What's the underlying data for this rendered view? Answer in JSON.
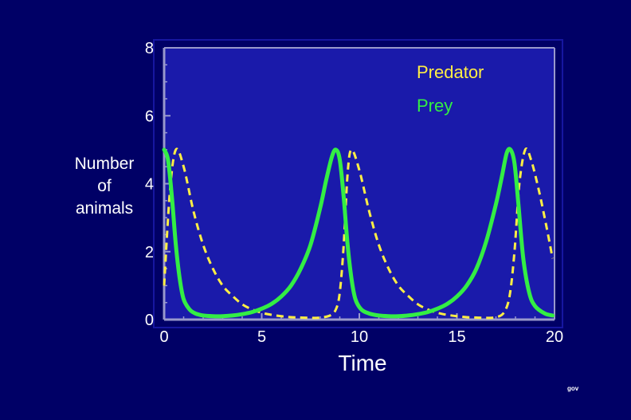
{
  "chart_data": {
    "type": "line",
    "title": "",
    "xlabel": "Time",
    "ylabel_lines": [
      "Number",
      "of",
      "animals"
    ],
    "xlim": [
      0,
      20
    ],
    "ylim": [
      0,
      8
    ],
    "xticks": [
      0,
      5,
      10,
      15,
      20
    ],
    "yticks": [
      0,
      2,
      4,
      6,
      8
    ],
    "grid": false,
    "legend_position": "top-right",
    "colors": {
      "background": "#000066",
      "plot_area": "#1a1aaa",
      "axis": "#9999cc"
    },
    "series": [
      {
        "name": "Predator",
        "color": "#ffee44",
        "style": "dashed",
        "x": [
          0,
          0.3,
          0.6,
          1,
          1.5,
          2,
          2.5,
          3,
          3.5,
          4,
          4.5,
          5,
          5.5,
          6,
          6.5,
          7,
          7.5,
          8,
          8.5,
          8.8,
          9.0,
          9.2,
          9.4,
          9.6,
          10,
          10.5,
          11,
          11.5,
          12,
          12.5,
          13,
          13.5,
          14,
          14.5,
          15,
          15.5,
          16,
          16.5,
          17,
          17.4,
          17.7,
          17.95,
          18.2,
          18.5,
          18.8,
          19.2,
          19.6,
          19.9
        ],
        "y": [
          1.0,
          3.8,
          5.0,
          4.5,
          3.2,
          2.2,
          1.5,
          1.0,
          0.7,
          0.45,
          0.3,
          0.2,
          0.14,
          0.1,
          0.07,
          0.06,
          0.05,
          0.06,
          0.12,
          0.3,
          0.8,
          2.2,
          4.3,
          5.0,
          4.4,
          3.2,
          2.2,
          1.5,
          1.0,
          0.7,
          0.45,
          0.3,
          0.2,
          0.14,
          0.1,
          0.07,
          0.06,
          0.05,
          0.07,
          0.2,
          0.7,
          2.0,
          4.0,
          5.0,
          4.7,
          3.8,
          2.7,
          1.8
        ]
      },
      {
        "name": "Prey",
        "color": "#33ee44",
        "style": "solid",
        "x": [
          0,
          0.2,
          0.4,
          0.6,
          0.8,
          1.0,
          1.3,
          1.6,
          2,
          2.5,
          3,
          3.5,
          4,
          4.5,
          5,
          5.5,
          6,
          6.5,
          7,
          7.5,
          8,
          8.3,
          8.6,
          8.8,
          9.0,
          9.2,
          9.4,
          9.6,
          9.8,
          10.1,
          10.5,
          11,
          11.5,
          12,
          12.5,
          13,
          13.5,
          14,
          14.5,
          15,
          15.5,
          16,
          16.5,
          17,
          17.3,
          17.55,
          17.75,
          17.95,
          18.15,
          18.4,
          18.7,
          19,
          19.5,
          19.9
        ],
        "y": [
          5.0,
          4.7,
          3.6,
          2.2,
          1.2,
          0.6,
          0.3,
          0.18,
          0.12,
          0.1,
          0.1,
          0.12,
          0.16,
          0.22,
          0.32,
          0.46,
          0.68,
          1.0,
          1.5,
          2.2,
          3.3,
          4.1,
          4.8,
          5.0,
          4.7,
          3.6,
          2.2,
          1.2,
          0.6,
          0.3,
          0.18,
          0.12,
          0.1,
          0.1,
          0.12,
          0.16,
          0.22,
          0.32,
          0.46,
          0.68,
          1.0,
          1.5,
          2.3,
          3.4,
          4.2,
          4.9,
          5.0,
          4.6,
          3.4,
          1.8,
          0.8,
          0.4,
          0.18,
          0.12
        ]
      }
    ]
  },
  "footer_text": "gov"
}
